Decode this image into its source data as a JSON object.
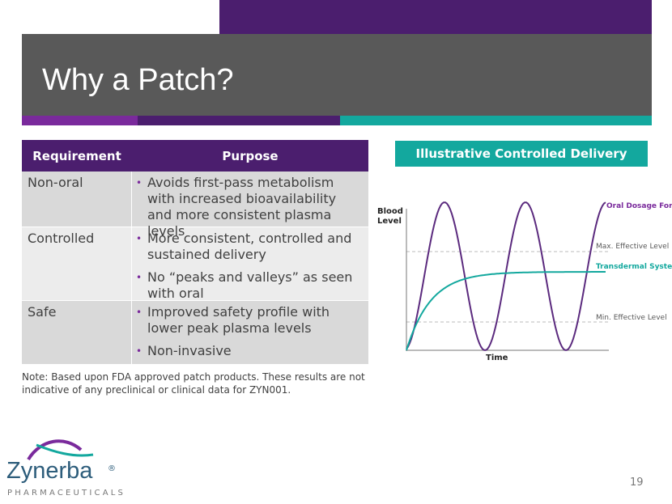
{
  "header": {
    "title": "Why a Patch?"
  },
  "table": {
    "headers": [
      "Requirement",
      "Purpose"
    ],
    "rows": [
      {
        "requirement": "Non-oral",
        "purpose": [
          "Avoids first-pass metabolism with increased bioavailability and more consistent plasma levels"
        ]
      },
      {
        "requirement": "Controlled",
        "purpose": [
          "More consistent, controlled and sustained delivery",
          "No “peaks and valleys” as seen with oral"
        ]
      },
      {
        "requirement": "Safe",
        "purpose": [
          "Improved safety profile with lower peak plasma levels",
          "Non-invasive"
        ]
      }
    ]
  },
  "note": "Note: Based upon FDA approved patch products. These results are not indicative of any preclinical or clinical data for ZYN001.",
  "diagram": {
    "title": "Illustrative Controlled Delivery",
    "y_label": "Blood Level",
    "x_label": "Time",
    "curves": [
      "Oral Dosage Form",
      "Transdermal System"
    ],
    "levels": [
      "Max. Effective Level",
      "Min. Effective Level"
    ]
  },
  "logo": {
    "name": "Zynerba",
    "mark": "®",
    "subtitle": "PHARMACEUTICALS"
  },
  "page_number": "19"
}
